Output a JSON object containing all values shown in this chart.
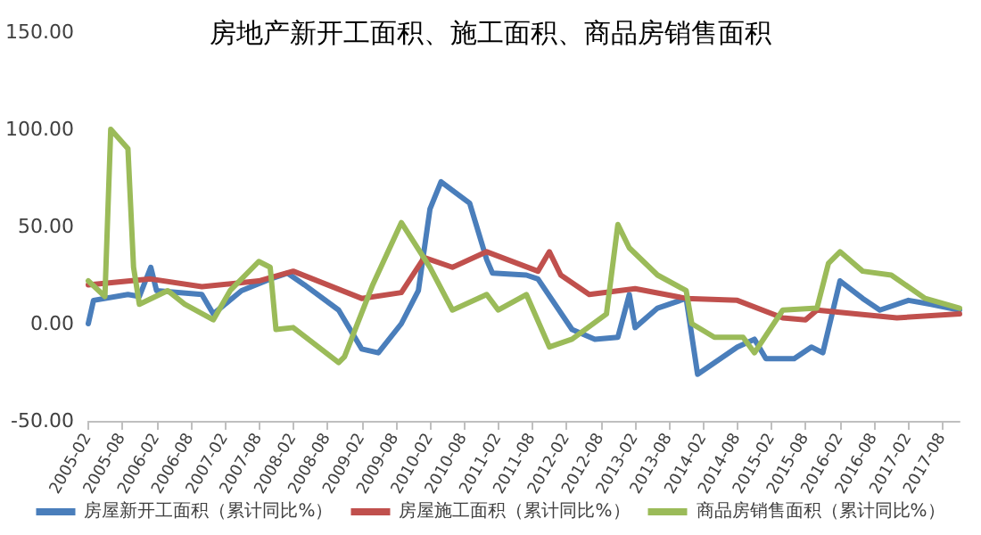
{
  "chart_data": {
    "type": "line",
    "title": "房地产新开工面积、施工面积、商品房销售面积",
    "xlim": [
      "2005-02",
      "2017-11"
    ],
    "xticks": [
      "2005-02",
      "2005-08",
      "2006-02",
      "2006-08",
      "2007-02",
      "2007-08",
      "2008-02",
      "2008-08",
      "2009-02",
      "2009-08",
      "2010-02",
      "2010-08",
      "2011-02",
      "2011-08",
      "2012-02",
      "2012-08",
      "2013-02",
      "2013-08",
      "2014-02",
      "2014-08",
      "2015-02",
      "2015-08",
      "2016-02",
      "2016-08",
      "2017-02",
      "2017-08"
    ],
    "ylim": [
      -50,
      150
    ],
    "yticks": [
      {
        "value": -50,
        "label": "-50.00"
      },
      {
        "value": 0,
        "label": "0.00"
      },
      {
        "value": 50,
        "label": "50.00"
      },
      {
        "value": 100,
        "label": "100.00"
      },
      {
        "value": 150,
        "label": "150.00"
      }
    ],
    "grid": false,
    "legend": "bottom",
    "marker": "none",
    "line_style": "solid",
    "series": [
      {
        "name": "房屋新开工面积（累计同比%）",
        "color": "#4a7ebb",
        "x": [
          "2005-02",
          "2005-03",
          "2005-09",
          "2005-11",
          "2006-01",
          "2006-02",
          "2006-10",
          "2006-12",
          "2007-05",
          "2007-10",
          "2008-01",
          "2008-04",
          "2008-10",
          "2009-02",
          "2009-05",
          "2009-09",
          "2009-12",
          "2010-02",
          "2010-04",
          "2010-09",
          "2010-12",
          "2011-01",
          "2011-07",
          "2011-09",
          "2012-03",
          "2012-07",
          "2012-11",
          "2013-01",
          "2013-02",
          "2013-06",
          "2013-11",
          "2014-01",
          "2014-08",
          "2014-11",
          "2015-01",
          "2015-06",
          "2015-09",
          "2015-11",
          "2016-02",
          "2016-06",
          "2016-09",
          "2017-02",
          "2017-06",
          "2017-11"
        ],
        "values": [
          0,
          12,
          15,
          14,
          29,
          17,
          15,
          5,
          17,
          23,
          26,
          20,
          7,
          -13,
          -15,
          0,
          17,
          59,
          73,
          62,
          33,
          26,
          25,
          23,
          -3,
          -8,
          -7,
          15,
          -2,
          8,
          13,
          -26,
          -12,
          -8,
          -18,
          -18,
          -12,
          -15,
          22,
          13,
          7,
          12,
          10,
          7
        ]
      },
      {
        "name": "房屋施工面积（累计同比%）",
        "color": "#c0504d",
        "x": [
          "2005-02",
          "2006-01",
          "2006-10",
          "2007-08",
          "2008-02",
          "2009-02",
          "2009-09",
          "2010-01",
          "2010-06",
          "2010-12",
          "2011-09",
          "2011-11",
          "2012-01",
          "2012-06",
          "2013-02",
          "2013-11",
          "2014-08",
          "2015-04",
          "2015-08",
          "2015-10",
          "2016-12",
          "2017-11"
        ],
        "values": [
          20,
          23,
          19,
          22,
          27,
          13,
          16,
          34,
          29,
          37,
          27,
          37,
          25,
          15,
          18,
          13,
          12,
          3,
          2,
          7,
          3,
          5
        ]
      },
      {
        "name": "商品房销售面积（累计同比%）",
        "color": "#9bbb59",
        "x": [
          "2005-02",
          "2005-05",
          "2005-06",
          "2005-09",
          "2005-10",
          "2005-11",
          "2006-04",
          "2006-07",
          "2006-12",
          "2007-03",
          "2007-08",
          "2007-10",
          "2007-11",
          "2008-02",
          "2008-10",
          "2008-11",
          "2009-04",
          "2009-09",
          "2010-02",
          "2010-06",
          "2010-12",
          "2011-02",
          "2011-07",
          "2011-11",
          "2012-03",
          "2012-09",
          "2012-11",
          "2013-01",
          "2013-06",
          "2013-11",
          "2013-12",
          "2014-04",
          "2014-09",
          "2014-11",
          "2015-04",
          "2015-10",
          "2015-12",
          "2016-02",
          "2016-06",
          "2016-11",
          "2017-05",
          "2017-11"
        ],
        "values": [
          22,
          14,
          100,
          90,
          29,
          10,
          17,
          10,
          2,
          17,
          32,
          29,
          -3,
          -2,
          -20,
          -17,
          20,
          52,
          29,
          7,
          15,
          7,
          15,
          -12,
          -8,
          5,
          51,
          39,
          25,
          17,
          0,
          -7,
          -7,
          -15,
          7,
          8,
          31,
          37,
          27,
          25,
          13,
          8
        ]
      }
    ]
  }
}
